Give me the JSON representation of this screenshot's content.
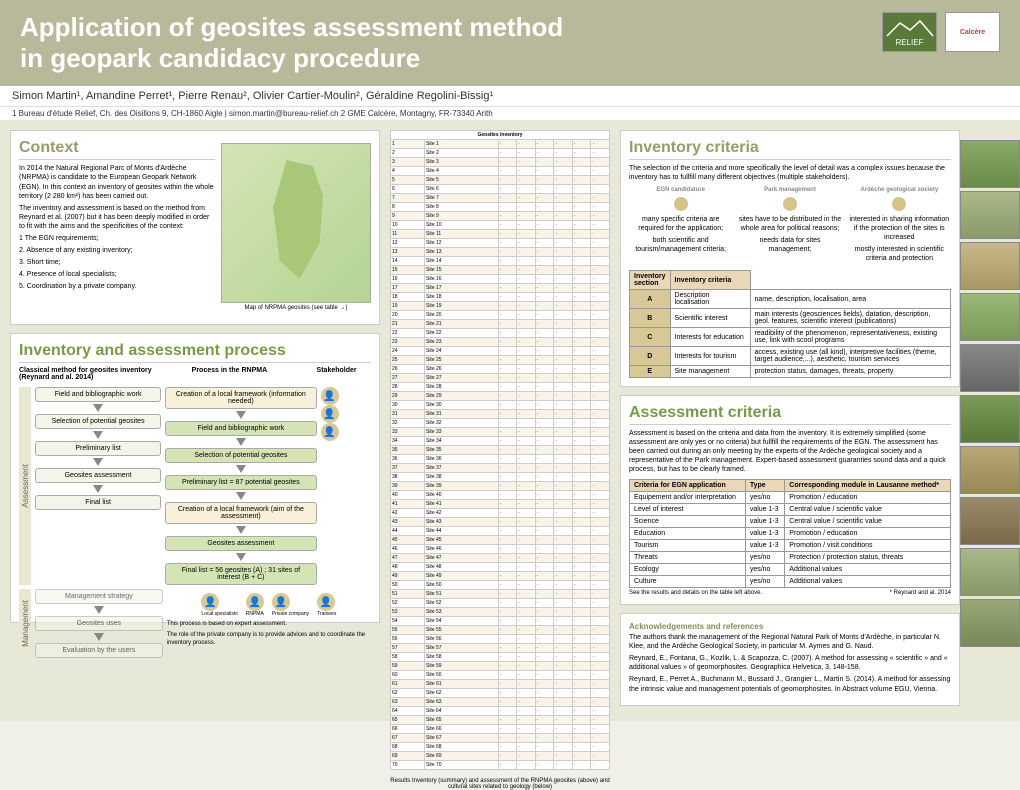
{
  "header": {
    "title_line1": "Application of geosites assessment method",
    "title_line2": "in geopark candidacy procedure",
    "logo1": "RELIEF",
    "logo2": "Calcère"
  },
  "authors": "Simon Martin¹, Amandine Perret¹, Pierre Renau², Olivier Cartier-Moulin², Géraldine Regolini-Bissig¹",
  "affiliations": "1 Bureau d'étude Relief, Ch. des Oisillons 9, CH-1860 Aigle | simon.martin@bureau-relief.ch      2 GME Calcère, Montagny, FR-73340 Arith",
  "context": {
    "heading": "Context",
    "p1": "In 2014 the Natural Regional Parc of Monts d'Ardèche (NRPMA) is candidate to the European Geopark Network (EGN). In this context an inventory of geosites within the whole territory (2 280 km²) has been carried out.",
    "p2": "The inventory and assessment is based on the method from Reynard et al. (2007) but it has been deeply modified in order to fit with the aims and the specificities of the context:",
    "list": [
      "1 The EGN requirements;",
      "2. Absence of any existing inventory;",
      "3. Short time;",
      "4. Presence of local specialists;",
      "5. Coordination by a private company."
    ],
    "map_caption": "Map of NRPMA geosites (see table →)"
  },
  "process": {
    "heading": "Inventory and assessment process",
    "classical_label": "Classical method for geosites inventory (Reynard and al. 2014)",
    "rnpma_label": "Process in the RNPMA",
    "stakeholder_label": "Stakeholder",
    "assessment_side": "Assessment",
    "management_side": "Management",
    "steps_left": [
      "Field and bibliographic work",
      "Selection of potential geosites",
      "Preliminary list",
      "Geosites assessment",
      "Final list",
      "Management strategy",
      "Geosites uses",
      "Evaluation by the users"
    ],
    "steps_right": [
      "Creation of a local framework (information needed)",
      "Field and bibliographic work",
      "Selection of potential geosites",
      "Preliminary list = 87 potential geosites",
      "Creation of a local framework (aim of the assessment)",
      "Geosites assessment",
      "Final list = 56 geosites (A) ; 31 sites of interest (B + C)"
    ],
    "stakeholders": [
      "Local specialists",
      "RNPMA",
      "Private company",
      "Trainees"
    ],
    "footer1": "This process is based on expert assessment.",
    "footer2": "The role of the private company is to provide advices and to coordinate the inventory process."
  },
  "results_caption": "Results    Inventory (summary) and assessment of the RNPMA geosites (above) and cultural sites related to geology (below)",
  "inventory": {
    "heading": "Inventory criteria",
    "intro": "The selection of the criteria and more specifically the level of detail was a complex issues because the inventory has to fullfill many different objectives (multiple stakeholders).",
    "cols": {
      "c1_h": "EGN candidature",
      "c1_t1": "many specific criteria are required for the application;",
      "c1_t2": "both scientific and tourism/management criteria;",
      "c2_h": "Park management",
      "c2_t1": "sites have to be distributed in the whole area for political reasons;",
      "c2_t2": "needs data for sites management;",
      "c3_h": "Ardèche geological society",
      "c3_t1": "interested in sharing information if the protection of the sites is increased",
      "c3_t2": "mostly interested in scientific criteria and protection"
    },
    "table_head": [
      "Inventory section",
      "Inventory criteria"
    ],
    "rows": [
      {
        "l": "A",
        "s": "Description localisation",
        "c": "name, description, localisation, area"
      },
      {
        "l": "B",
        "s": "Scientific interest",
        "c": "main interests (geosciences fields), datation, description, geol. features, scientific interest (publications)"
      },
      {
        "l": "C",
        "s": "Interests for education",
        "c": "readibility of the phenomenon, representativeness, existing use, link with scool programs"
      },
      {
        "l": "D",
        "s": "Interests for tourism",
        "c": "access, existing use (all kind), interpretive facilities (theme, target audience,...), aesthetic, tourism services"
      },
      {
        "l": "E",
        "s": "Site management",
        "c": "protection status, damages, threats, property"
      }
    ]
  },
  "assessment": {
    "heading": "Assessment criteria",
    "intro": "Assessment is based on the criteria and data from the inventory. It is extremely simplified (some assessment are only yes or no criteria) but fullfill the requirements of the EGN. The assessment has been carried out during an only meeting by the experts of the Ardèche geological society and a representative of the Park management. Expert-based assessment guaranties sound data and a quick process, but has to be clearly framed.",
    "table_head": [
      "Criteria for EGN application",
      "Type",
      "Corresponding module in Lausanne method*"
    ],
    "rows": [
      {
        "a": "Equipement and/or interpretation",
        "b": "yes/no",
        "c": "Promotion / education"
      },
      {
        "a": "Level of interest",
        "b": "value 1-3",
        "c": "Central value / scientific value"
      },
      {
        "a": "Science",
        "b": "value 1-3",
        "c": "Central value / scientific value"
      },
      {
        "a": "Education",
        "b": "value 1-3",
        "c": "Promotion / education"
      },
      {
        "a": "Tourism",
        "b": "value 1-3",
        "c": "Promotion / visit conditions"
      },
      {
        "a": "Threats",
        "b": "yes/no",
        "c": "Protection / protection status, threats"
      },
      {
        "a": "Ecology",
        "b": "yes/no",
        "c": "Additional values"
      },
      {
        "a": "Culture",
        "b": "yes/no",
        "c": "Additional values"
      }
    ],
    "footnote_left": "See the results and details on the table left above.",
    "footnote_right": "* Reynard and al. 2014"
  },
  "ack": {
    "heading": "Acknowledgements and references",
    "p1": "The authors thank the management of the Regional Natural Park of Monts d'Ardèche, in particular N. Klee, and the Ardèche Geological Society, in particular M. Aymes and G. Naud.",
    "p2": "Reynard, E., Fontana, G., Kozlik, L. & Scapozza, C. (2007). A method for assessing « scientific » and « additional values » of geomorphosites. Geographica Helvetica, 3, 148-158.",
    "p3": "Reynard, E., Perret A., Buchmann M., Bussard J., Grangier L., Martin S. (2014). A method for assessing the intrinsic value and management potentials of geomorphosites. In Abstract volume EGU, Vienna."
  },
  "colors": {
    "header_bg": "#b8b89a",
    "title_color": "#ffffff",
    "section_heading": "#9a9a6a",
    "section_heading_green": "#7a9a4a",
    "map_bg": "#c4d8a4"
  }
}
